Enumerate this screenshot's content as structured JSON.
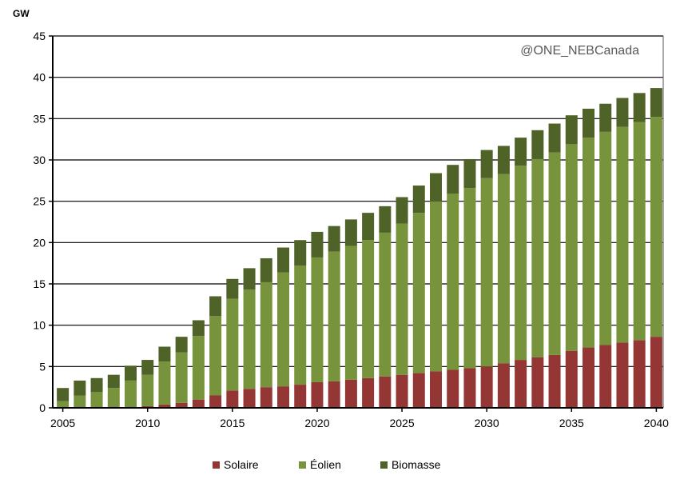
{
  "chart_data": {
    "type": "bar",
    "stacked": true,
    "ylabel": "GW",
    "ylim": [
      0,
      45
    ],
    "yticks": [
      0,
      5,
      10,
      15,
      20,
      25,
      30,
      35,
      40,
      45
    ],
    "xtick_labels": [
      "2005",
      "2010",
      "2015",
      "2020",
      "2025",
      "2030",
      "2035",
      "2040"
    ],
    "grid": true,
    "legend_position": "bottom",
    "annotation": "@ONE_NEBCanada",
    "categories": [
      2005,
      2006,
      2007,
      2008,
      2009,
      2010,
      2011,
      2012,
      2013,
      2014,
      2015,
      2016,
      2017,
      2018,
      2019,
      2020,
      2021,
      2022,
      2023,
      2024,
      2025,
      2026,
      2027,
      2028,
      2029,
      2030,
      2031,
      2032,
      2033,
      2034,
      2035,
      2036,
      2037,
      2038,
      2039,
      2040
    ],
    "series": [
      {
        "name": "Solaire",
        "color": "#943634",
        "values": [
          0,
          0,
          0,
          0,
          0,
          0.2,
          0.4,
          0.6,
          1.0,
          1.5,
          2.1,
          2.3,
          2.5,
          2.6,
          2.8,
          3.1,
          3.2,
          3.4,
          3.6,
          3.8,
          4.0,
          4.2,
          4.4,
          4.6,
          4.8,
          5.0,
          5.4,
          5.8,
          6.1,
          6.4,
          6.9,
          7.3,
          7.6,
          7.9,
          8.2,
          8.6
        ]
      },
      {
        "name": "Éolien",
        "color": "#77933c",
        "values": [
          0.8,
          1.5,
          1.9,
          2.4,
          3.3,
          3.8,
          5.2,
          6.1,
          7.7,
          9.6,
          11.1,
          12.0,
          12.7,
          13.8,
          14.4,
          15.1,
          15.7,
          16.2,
          16.7,
          17.4,
          18.3,
          19.4,
          20.6,
          21.3,
          21.8,
          22.8,
          22.9,
          23.5,
          24.0,
          24.5,
          25.0,
          25.4,
          25.8,
          26.1,
          26.4,
          26.6
        ]
      },
      {
        "name": "Biomasse",
        "color": "#4f6228",
        "values": [
          1.6,
          1.8,
          1.7,
          1.6,
          1.8,
          1.8,
          1.8,
          1.9,
          1.9,
          2.4,
          2.4,
          2.6,
          2.9,
          3.0,
          3.1,
          3.1,
          3.1,
          3.2,
          3.3,
          3.2,
          3.2,
          3.3,
          3.4,
          3.5,
          3.5,
          3.4,
          3.4,
          3.4,
          3.5,
          3.5,
          3.5,
          3.5,
          3.4,
          3.5,
          3.5,
          3.5
        ]
      }
    ]
  }
}
